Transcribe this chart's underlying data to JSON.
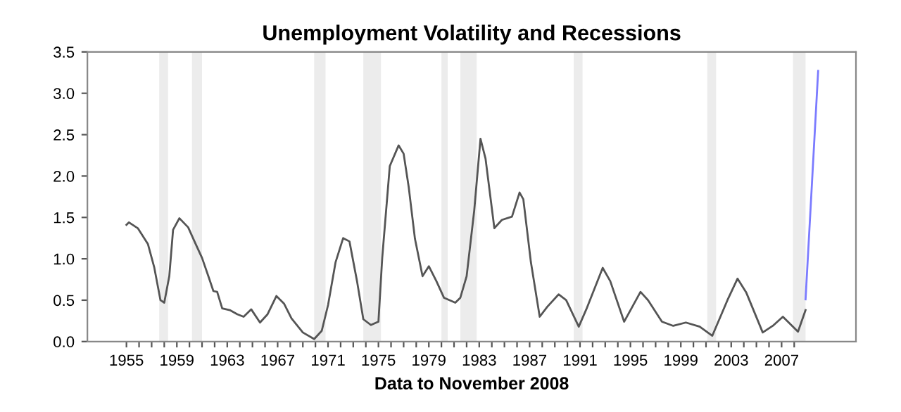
{
  "chart_data": {
    "type": "line",
    "title": "Unemployment Volatility and Recessions",
    "xlabel": "Data to November 2008",
    "series": [
      {
        "color": "#555555",
        "x": [
          1955.0,
          1955.2,
          1955.9,
          1956.7,
          1957.2,
          1957.7,
          1958.0,
          1958.4,
          1958.7,
          1959.2,
          1959.9,
          1960.4,
          1961.0,
          1961.5,
          1961.9,
          1962.2,
          1962.6,
          1963.2,
          1963.8,
          1964.3,
          1964.9,
          1965.6,
          1966.2,
          1966.9,
          1967.5,
          1968.1,
          1969.0,
          1969.9,
          1970.5,
          1971.0,
          1971.6,
          1972.2,
          1972.7,
          1973.3,
          1973.8,
          1974.4,
          1975.0,
          1975.3,
          1975.9,
          1976.6,
          1977.0,
          1977.4,
          1977.9,
          1978.5,
          1979.0,
          1979.6,
          1980.2,
          1981.1,
          1981.5,
          1982.0,
          1982.6,
          1983.1,
          1983.5,
          1984.2,
          1984.8,
          1985.6,
          1986.2,
          1986.5,
          1987.1,
          1987.8,
          1988.4,
          1989.3,
          1989.9,
          1990.9,
          1991.5,
          1992.8,
          1993.4,
          1994.5,
          1995.8,
          1996.4,
          1997.5,
          1998.4,
          1999.4,
          2000.5,
          2001.5,
          2002.7,
          2003.5,
          2004.2,
          2005.5,
          2006.3,
          2007.1,
          2008.3,
          2008.9
        ],
        "values": [
          1.41,
          1.44,
          1.37,
          1.18,
          0.9,
          0.5,
          0.47,
          0.79,
          1.35,
          1.49,
          1.38,
          1.21,
          1.01,
          0.79,
          0.61,
          0.6,
          0.4,
          0.38,
          0.33,
          0.3,
          0.39,
          0.23,
          0.33,
          0.55,
          0.46,
          0.28,
          0.11,
          0.03,
          0.13,
          0.44,
          0.96,
          1.25,
          1.21,
          0.73,
          0.27,
          0.2,
          0.24,
          1.01,
          2.12,
          2.37,
          2.27,
          1.87,
          1.24,
          0.79,
          0.91,
          0.73,
          0.53,
          0.47,
          0.53,
          0.79,
          1.58,
          2.45,
          2.21,
          1.37,
          1.47,
          1.51,
          1.8,
          1.72,
          0.96,
          0.3,
          0.42,
          0.57,
          0.5,
          0.18,
          0.39,
          0.89,
          0.73,
          0.24,
          0.6,
          0.5,
          0.24,
          0.19,
          0.23,
          0.18,
          0.07,
          0.5,
          0.76,
          0.59,
          0.11,
          0.19,
          0.3,
          0.12,
          0.38
        ]
      },
      {
        "color": "#7b7bff",
        "x": [
          2008.9,
          2009.9
        ],
        "values": [
          0.51,
          3.27
        ]
      }
    ],
    "bands": [
      {
        "axis": "x",
        "from": 1957.6,
        "to": 1958.3,
        "color": "#ececec"
      },
      {
        "axis": "x",
        "from": 1960.2,
        "to": 1961.0,
        "color": "#ececec"
      },
      {
        "axis": "x",
        "from": 1969.9,
        "to": 1970.8,
        "color": "#ececec"
      },
      {
        "axis": "x",
        "from": 1973.8,
        "to": 1975.2,
        "color": "#ececec"
      },
      {
        "axis": "x",
        "from": 1980.0,
        "to": 1980.5,
        "color": "#ececec"
      },
      {
        "axis": "x",
        "from": 1981.5,
        "to": 1982.8,
        "color": "#ececec"
      },
      {
        "axis": "x",
        "from": 1990.5,
        "to": 1991.2,
        "color": "#ececec"
      },
      {
        "axis": "x",
        "from": 2001.1,
        "to": 2001.8,
        "color": "#ececec"
      },
      {
        "axis": "x",
        "from": 2007.9,
        "to": 2008.9,
        "color": "#ececec"
      }
    ],
    "xlim": [
      1951.9,
      2012.9
    ],
    "xticks": [
      1955,
      {
        "value": 1956,
        "label": null
      },
      {
        "value": 1957,
        "label": null
      },
      {
        "value": 1958,
        "label": null
      },
      1959,
      {
        "value": 1960,
        "label": null
      },
      {
        "value": 1961,
        "label": null
      },
      {
        "value": 1962,
        "label": null
      },
      1963,
      {
        "value": 1964,
        "label": null
      },
      {
        "value": 1965,
        "label": null
      },
      {
        "value": 1966,
        "label": null
      },
      1967,
      {
        "value": 1968,
        "label": null
      },
      {
        "value": 1969,
        "label": null
      },
      {
        "value": 1970,
        "label": null
      },
      1971,
      {
        "value": 1972,
        "label": null
      },
      {
        "value": 1973,
        "label": null
      },
      {
        "value": 1974,
        "label": null
      },
      1975,
      {
        "value": 1976,
        "label": null
      },
      {
        "value": 1977,
        "label": null
      },
      {
        "value": 1978,
        "label": null
      },
      1979,
      {
        "value": 1980,
        "label": null
      },
      {
        "value": 1981,
        "label": null
      },
      {
        "value": 1982,
        "label": null
      },
      1983,
      {
        "value": 1984,
        "label": null
      },
      {
        "value": 1985,
        "label": null
      },
      {
        "value": 1986,
        "label": null
      },
      1987,
      {
        "value": 1988,
        "label": null
      },
      {
        "value": 1989,
        "label": null
      },
      {
        "value": 1990,
        "label": null
      },
      1991,
      {
        "value": 1992,
        "label": null
      },
      {
        "value": 1993,
        "label": null
      },
      {
        "value": 1994,
        "label": null
      },
      1995,
      {
        "value": 1996,
        "label": null
      },
      {
        "value": 1997,
        "label": null
      },
      {
        "value": 1998,
        "label": null
      },
      1999,
      {
        "value": 2000,
        "label": null
      },
      {
        "value": 2001,
        "label": null
      },
      {
        "value": 2002,
        "label": null
      },
      2003,
      {
        "value": 2004,
        "label": null
      },
      {
        "value": 2005,
        "label": null
      },
      {
        "value": 2006,
        "label": null
      },
      2007,
      {
        "value": 2008,
        "label": null
      }
    ],
    "ylim": [
      0,
      3.5
    ],
    "yticks": [
      {
        "value": 0,
        "label": "0.0"
      },
      {
        "value": 0.5,
        "label": "0.5"
      },
      {
        "value": 1,
        "label": "1.0"
      },
      {
        "value": 1.5,
        "label": "1.5"
      },
      {
        "value": 2,
        "label": "2.0"
      },
      {
        "value": 2.5,
        "label": "2.5"
      },
      {
        "value": 3,
        "label": "3.0"
      },
      {
        "value": 3.5,
        "label": "3.5"
      }
    ],
    "grid": false,
    "marker": "none",
    "line_style": "solid"
  }
}
